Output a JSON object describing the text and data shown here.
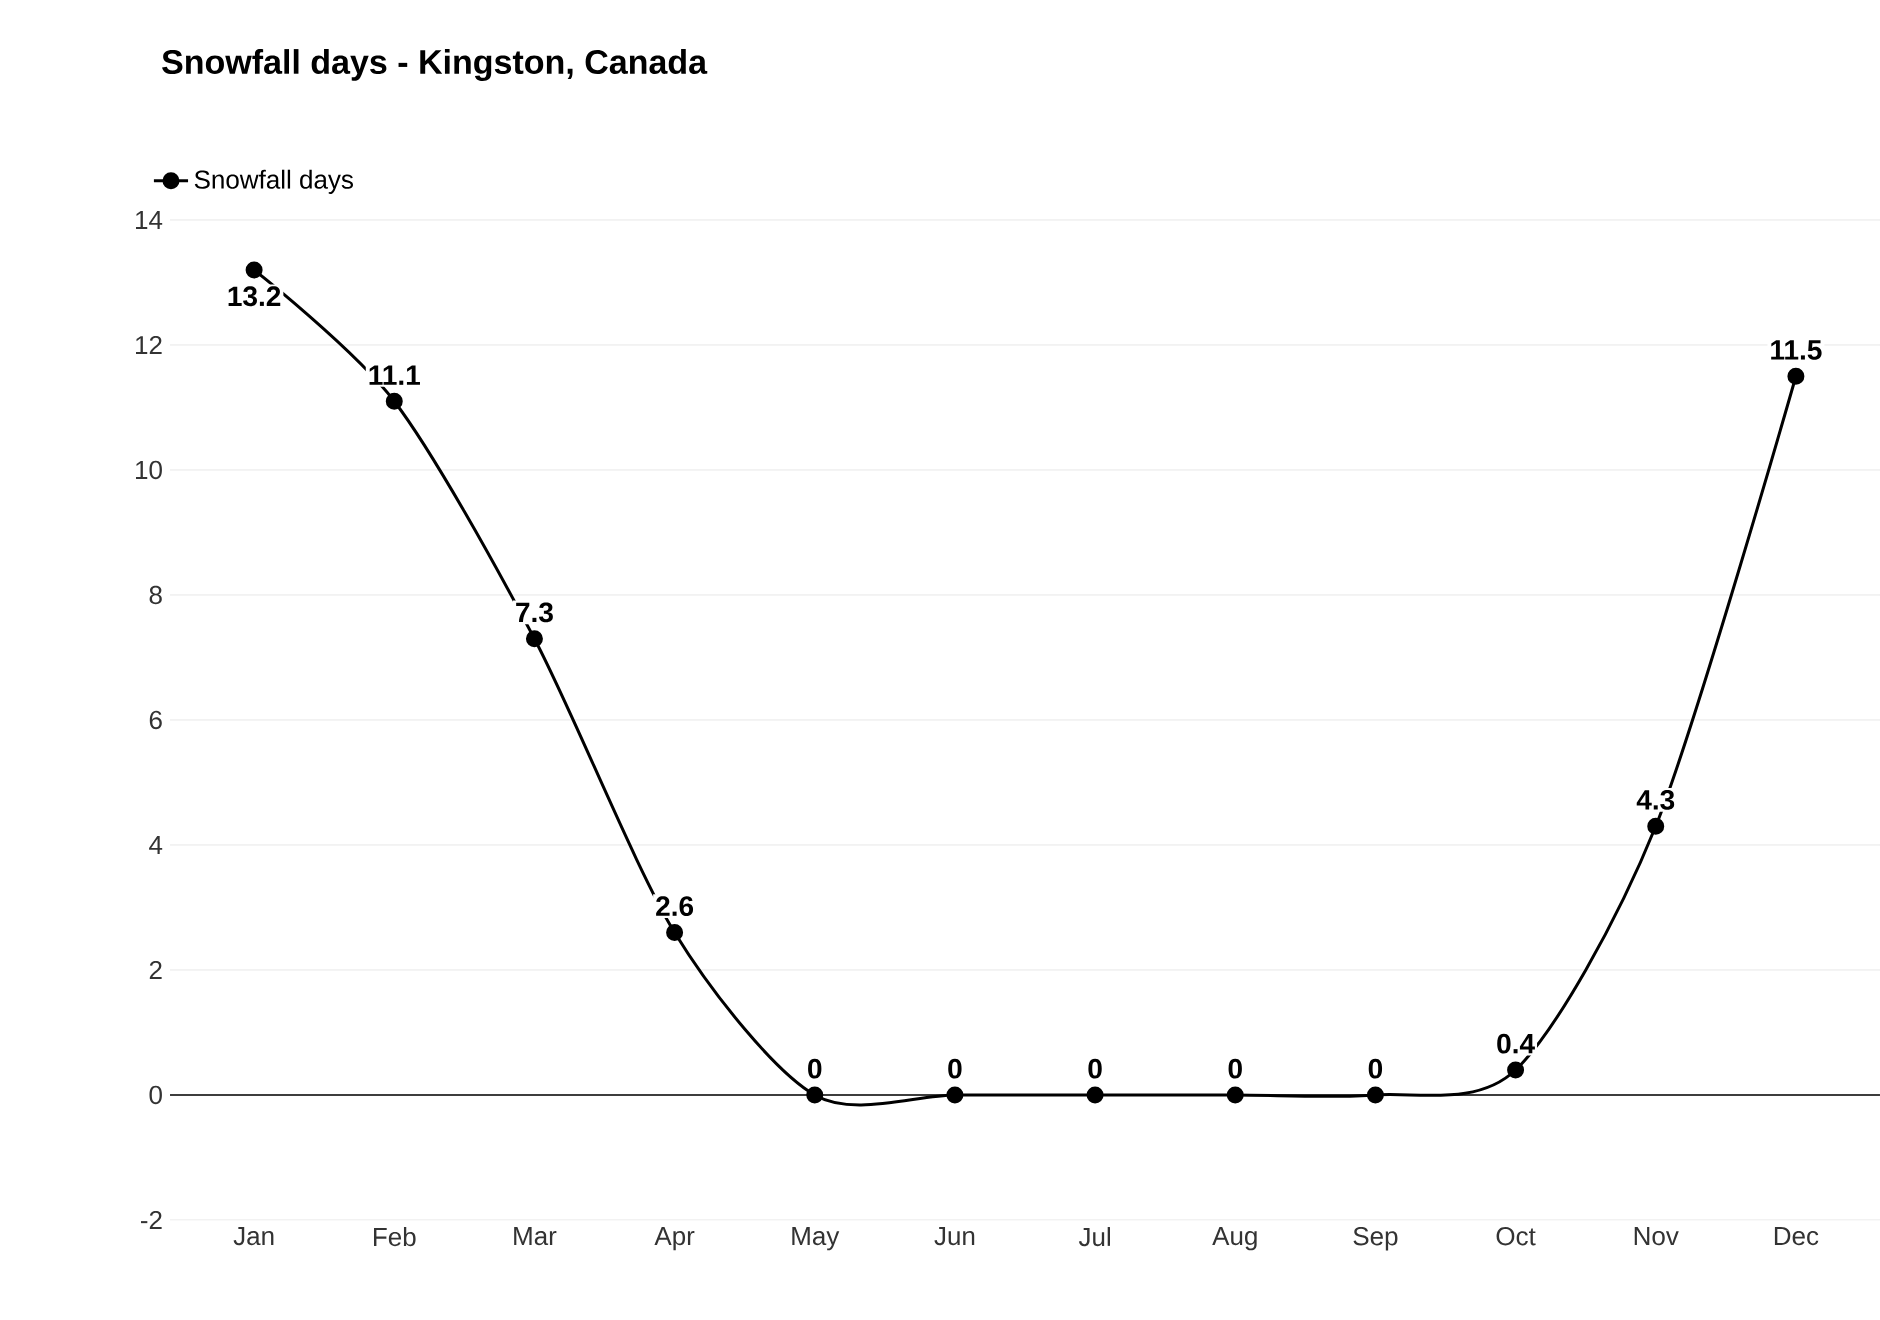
{
  "chart_data": {
    "type": "line",
    "title": "Snowfall days - Kingston, Canada",
    "categories": [
      "Jan",
      "Feb",
      "Mar",
      "Apr",
      "May",
      "Jun",
      "Jul",
      "Aug",
      "Sep",
      "Oct",
      "Nov",
      "Dec"
    ],
    "series": [
      {
        "name": "Snowfall days",
        "color": "#000000",
        "values": [
          13.2,
          11.1,
          7.3,
          2.6,
          0,
          0,
          0,
          0,
          0,
          0.4,
          4.3,
          11.5
        ]
      }
    ],
    "ylim": [
      -2,
      14
    ],
    "yticks": [
      -2,
      0,
      2,
      4,
      6,
      8,
      10,
      12,
      14
    ],
    "grid": "y",
    "legend": "top left",
    "marker": "circle",
    "line_style": "solid",
    "data_labels": true
  }
}
